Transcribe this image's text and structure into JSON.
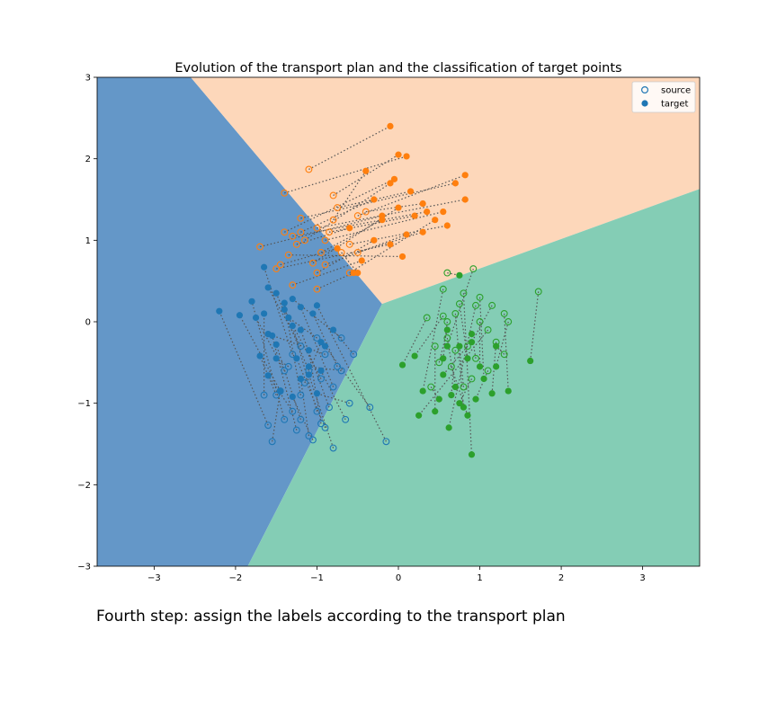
{
  "caption": "Fourth step: assign the labels according to the transport plan",
  "chart_data": {
    "type": "scatter",
    "title": "Evolution of the transport plan and the classification of target points",
    "xlabel": "",
    "ylabel": "",
    "xlim": [
      -3.7,
      3.7
    ],
    "ylim": [
      -3,
      3
    ],
    "xticks": [
      -3,
      -2,
      -1,
      0,
      1,
      2,
      3
    ],
    "yticks": [
      -3,
      -2,
      -1,
      0,
      1,
      2,
      3
    ],
    "xtick_labels": [
      "−3",
      "−2",
      "−1",
      "0",
      "1",
      "2",
      "3"
    ],
    "ytick_labels": [
      "−3",
      "−2",
      "−1",
      "0",
      "1",
      "2",
      "3"
    ],
    "grid": false,
    "legend_position": "top-right",
    "legend": [
      {
        "label": "source",
        "marker": "open-circle"
      },
      {
        "label": "target",
        "marker": "filled-circle"
      }
    ],
    "colors": {
      "class0": "#1f77b4",
      "class1": "#ff7f0e",
      "class2": "#2ca02c",
      "region0": "#6497c8",
      "region1": "#fdd7ba",
      "region2": "#84cdb5",
      "link": "#555555"
    },
    "regions": [
      {
        "class": 0,
        "polygon": [
          [
            -3.7,
            3
          ],
          [
            -2.55,
            3
          ],
          [
            -0.2,
            0.22
          ],
          [
            -1.85,
            -3
          ],
          [
            -3.7,
            -3
          ]
        ]
      },
      {
        "class": 1,
        "polygon": [
          [
            -2.55,
            3
          ],
          [
            3.7,
            3
          ],
          [
            3.7,
            1.63
          ],
          [
            -0.2,
            0.22
          ]
        ]
      },
      {
        "class": 2,
        "polygon": [
          [
            -0.2,
            0.22
          ],
          [
            3.7,
            1.63
          ],
          [
            3.7,
            -3
          ],
          [
            -1.85,
            -3
          ]
        ]
      }
    ],
    "series": [
      {
        "class": 0,
        "pairs": [
          [
            -1.3,
            -0.4,
            -1.65,
            0.67
          ],
          [
            -1.1,
            -0.6,
            -1.5,
            0.35
          ],
          [
            -1.2,
            -0.9,
            -1.4,
            0.23
          ],
          [
            -0.8,
            -0.8,
            -1.2,
            0.18
          ],
          [
            -1.4,
            -0.6,
            -1.75,
            0.05
          ],
          [
            -1.0,
            -1.1,
            -1.3,
            -0.05
          ],
          [
            -0.9,
            -0.4,
            -1.6,
            -0.15
          ],
          [
            -1.2,
            -1.2,
            -1.5,
            -0.28
          ],
          [
            -1.5,
            -0.9,
            -1.7,
            -0.42
          ],
          [
            -0.7,
            -0.6,
            -1.1,
            -0.55
          ],
          [
            -1.1,
            -1.4,
            -1.2,
            -0.7
          ],
          [
            -1.3,
            -1.1,
            -1.6,
            -0.66
          ],
          [
            -0.6,
            -1.0,
            -1.0,
            -0.88
          ],
          [
            -1.0,
            -0.2,
            -1.35,
            0.05
          ],
          [
            -0.9,
            -1.3,
            -1.25,
            -0.45
          ],
          [
            -1.4,
            -1.2,
            -1.8,
            0.25
          ],
          [
            -0.75,
            -0.55,
            -1.05,
            0.1
          ],
          [
            -1.15,
            -0.75,
            -0.95,
            -0.25
          ],
          [
            -1.6,
            -1.27,
            -2.2,
            0.13
          ],
          [
            -0.15,
            -1.47,
            -1.0,
            0.2
          ],
          [
            -1.25,
            -1.33,
            -1.55,
            -0.17
          ],
          [
            -0.35,
            -1.05,
            -0.9,
            -0.3
          ],
          [
            -0.8,
            -1.55,
            -1.1,
            -0.65
          ],
          [
            -1.05,
            -1.45,
            -1.3,
            -0.92
          ],
          [
            -0.65,
            -1.2,
            -0.95,
            -0.6
          ],
          [
            -1.45,
            -0.85,
            -1.95,
            0.08
          ],
          [
            -0.85,
            -1.05,
            -1.2,
            -0.1
          ],
          [
            -0.7,
            -0.2,
            -1.3,
            0.28
          ],
          [
            -1.35,
            -0.55,
            -1.5,
            -0.45
          ],
          [
            -0.95,
            -0.7,
            -1.4,
            0.15
          ],
          [
            -0.55,
            -0.4,
            -0.8,
            -0.1
          ],
          [
            -1.65,
            -0.9,
            -1.65,
            0.1
          ],
          [
            -1.2,
            -0.3,
            -1.6,
            0.42
          ],
          [
            -0.95,
            -1.25,
            -1.1,
            -0.35
          ],
          [
            -1.55,
            -1.47,
            -1.45,
            -0.85
          ]
        ]
      },
      {
        "class": 1,
        "pairs": [
          [
            -1.1,
            1.87,
            -0.1,
            2.4
          ],
          [
            -0.8,
            1.55,
            0.0,
            2.05
          ],
          [
            -1.4,
            1.58,
            0.1,
            2.03
          ],
          [
            -0.5,
            1.3,
            0.82,
            1.8
          ],
          [
            -1.2,
            1.27,
            0.7,
            1.7
          ],
          [
            -1.0,
            1.15,
            0.82,
            1.5
          ],
          [
            -0.6,
            0.95,
            0.6,
            1.18
          ],
          [
            -1.3,
            1.05,
            0.35,
            1.35
          ],
          [
            -0.9,
            0.7,
            0.1,
            1.07
          ],
          [
            -1.35,
            0.82,
            0.05,
            0.8
          ],
          [
            -1.0,
            0.6,
            -0.3,
            1.0
          ],
          [
            -0.7,
            0.85,
            -0.5,
            0.6
          ],
          [
            -1.5,
            0.65,
            -0.1,
            0.95
          ],
          [
            -1.7,
            0.92,
            -0.2,
            1.3
          ],
          [
            -0.8,
            1.25,
            -0.4,
            1.85
          ],
          [
            -1.15,
            1.0,
            -0.1,
            1.7
          ],
          [
            -0.4,
            1.35,
            0.3,
            1.45
          ],
          [
            -1.25,
            0.95,
            -0.6,
            1.15
          ],
          [
            -1.45,
            0.7,
            -0.75,
            0.9
          ],
          [
            -0.95,
            0.85,
            -0.2,
            1.25
          ],
          [
            -0.6,
            0.6,
            0.45,
            1.25
          ],
          [
            -1.05,
            0.72,
            0.0,
            1.4
          ],
          [
            -0.85,
            1.1,
            0.2,
            1.3
          ],
          [
            -1.2,
            1.1,
            -0.3,
            1.5
          ],
          [
            -0.75,
            1.4,
            0.15,
            1.6
          ],
          [
            -1.3,
            0.45,
            -0.45,
            0.75
          ],
          [
            -0.5,
            0.85,
            0.3,
            1.1
          ],
          [
            -1.0,
            0.4,
            -0.55,
            0.6
          ],
          [
            -1.4,
            1.1,
            -0.05,
            1.75
          ],
          [
            -0.9,
            1.0,
            0.55,
            1.35
          ]
        ]
      },
      {
        "class": 2,
        "pairs": [
          [
            0.6,
            0.6,
            0.75,
            0.57
          ],
          [
            0.92,
            0.65,
            0.6,
            -0.3
          ],
          [
            1.72,
            0.37,
            1.62,
            -0.48
          ],
          [
            0.55,
            0.4,
            0.3,
            -0.85
          ],
          [
            0.35,
            0.05,
            0.05,
            -0.53
          ],
          [
            0.8,
            0.35,
            0.9,
            -1.63
          ],
          [
            0.95,
            0.2,
            0.62,
            -1.3
          ],
          [
            1.3,
            0.1,
            1.35,
            -0.85
          ],
          [
            1.1,
            -0.1,
            0.25,
            -1.15
          ],
          [
            0.45,
            -0.3,
            0.45,
            -1.1
          ],
          [
            0.7,
            0.1,
            0.8,
            -1.05
          ],
          [
            1.2,
            -0.25,
            1.15,
            -0.88
          ],
          [
            0.55,
            0.07,
            0.2,
            -0.42
          ],
          [
            0.65,
            -0.55,
            0.85,
            -1.15
          ],
          [
            1.0,
            0.0,
            1.0,
            -0.55
          ],
          [
            0.85,
            -0.3,
            0.55,
            -0.65
          ],
          [
            1.3,
            -0.4,
            1.2,
            -0.3
          ],
          [
            0.6,
            -0.2,
            0.7,
            -0.8
          ],
          [
            0.9,
            -0.7,
            0.75,
            -1.0
          ],
          [
            0.4,
            -0.8,
            0.5,
            -0.95
          ],
          [
            1.15,
            0.2,
            0.9,
            -0.25
          ],
          [
            0.75,
            0.22,
            0.85,
            -0.45
          ],
          [
            0.5,
            -0.5,
            0.6,
            -0.1
          ],
          [
            1.0,
            0.3,
            1.05,
            -0.7
          ],
          [
            0.8,
            -0.8,
            0.75,
            -0.3
          ],
          [
            1.35,
            0.0,
            1.2,
            -0.55
          ],
          [
            0.7,
            -0.35,
            0.65,
            -0.9
          ],
          [
            0.95,
            -0.45,
            0.9,
            -0.15
          ],
          [
            0.6,
            0.0,
            0.55,
            -0.45
          ],
          [
            1.1,
            -0.6,
            0.95,
            -0.95
          ]
        ]
      }
    ]
  }
}
